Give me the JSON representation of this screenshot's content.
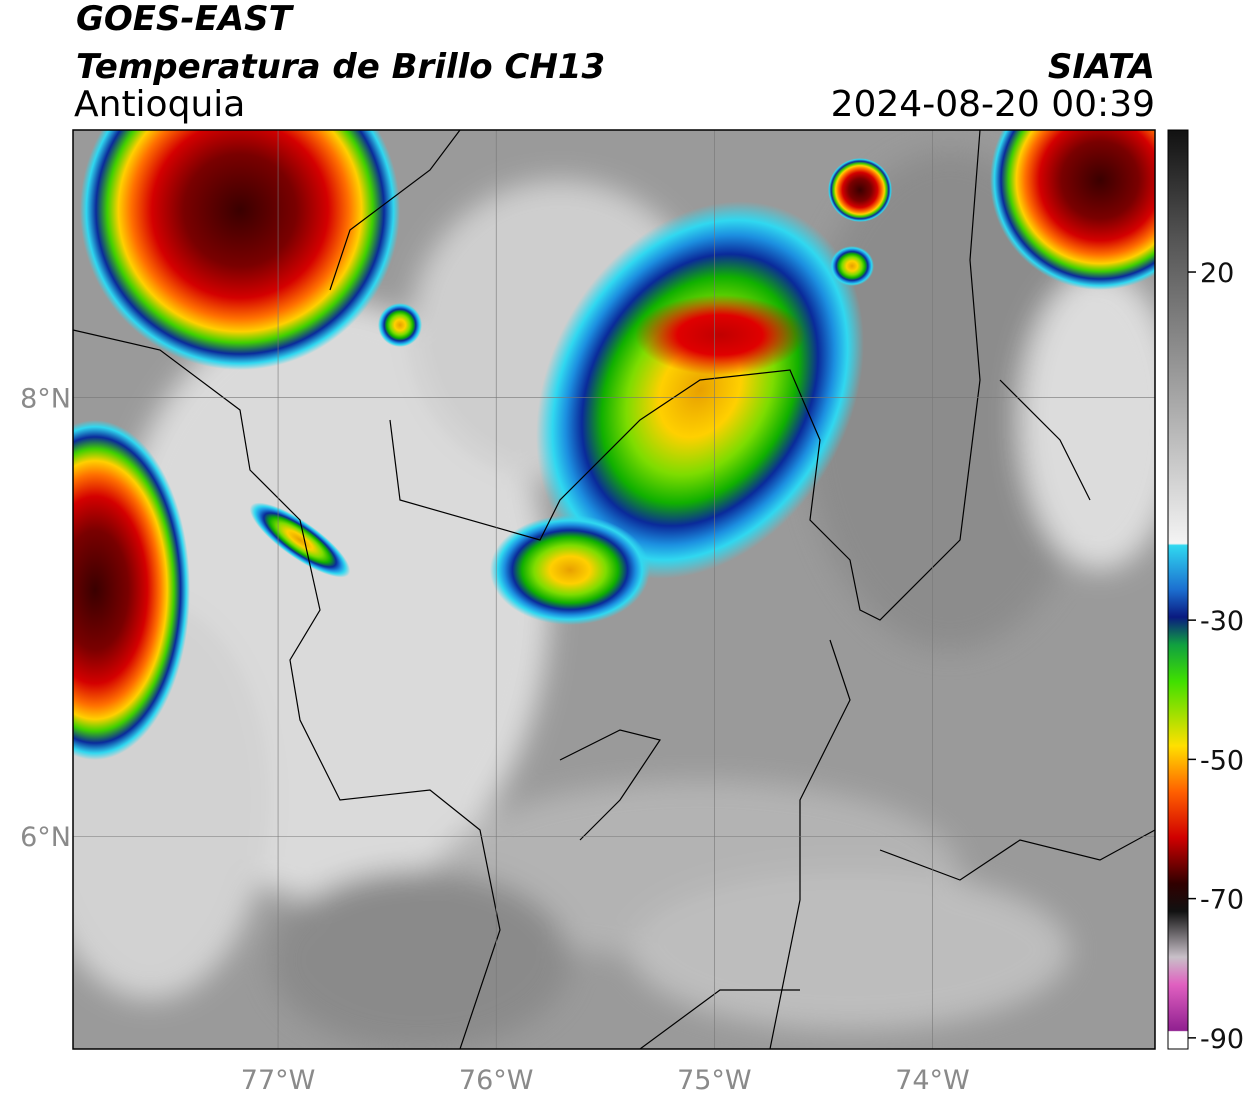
{
  "title": "GOES-EAST",
  "subtitle": "Temperatura de Brillo CH13",
  "region": "Antioquia",
  "source": "SIATA",
  "datetime": "2024-08-20 00:39",
  "map": {
    "xlim": [
      -77.94,
      -72.98
    ],
    "ylim": [
      5.03,
      9.22
    ],
    "xticks": [
      {
        "value": -77,
        "label": "77°W"
      },
      {
        "value": -76,
        "label": "76°W"
      },
      {
        "value": -75,
        "label": "75°W"
      },
      {
        "value": -74,
        "label": "74°W"
      }
    ],
    "yticks": [
      {
        "value": 8,
        "label": "8°N"
      },
      {
        "value": 6,
        "label": "6°N"
      }
    ],
    "grid": true
  },
  "colorbar": {
    "lim": [
      -91.6,
      40.4
    ],
    "ticks": [
      20,
      -30,
      -50,
      -70,
      -90
    ]
  }
}
